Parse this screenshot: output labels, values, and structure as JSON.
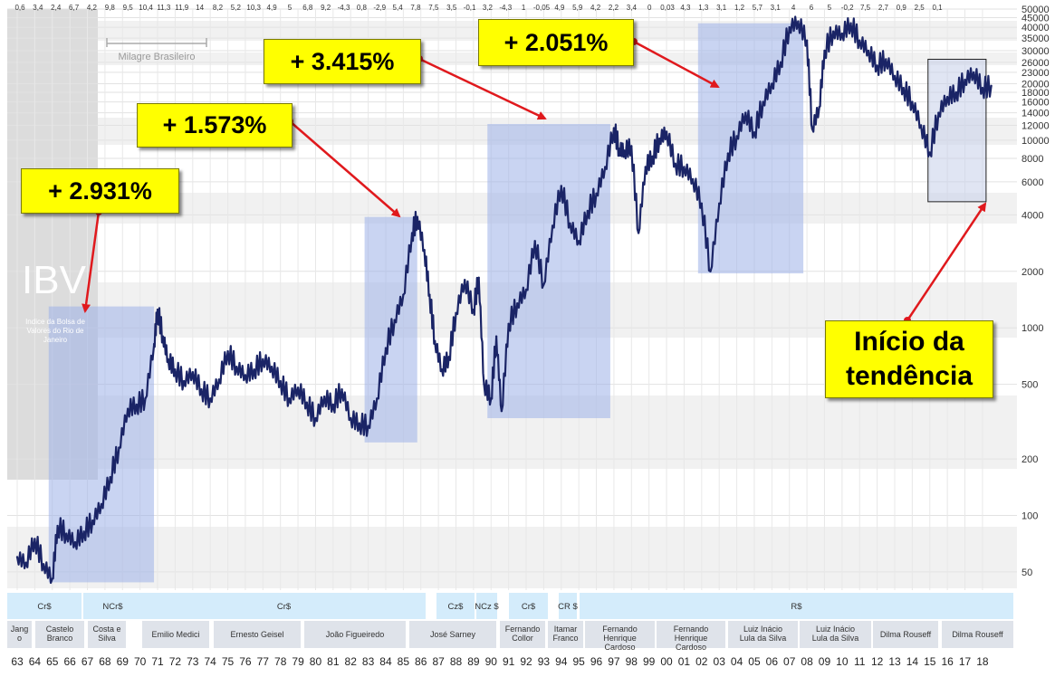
{
  "chart_data": {
    "type": "line",
    "title": "",
    "watermark": {
      "code": "IBV",
      "name": "Indice da Bolsa de Valores do Rio de Janeiro"
    },
    "xlabel": "",
    "ylabel": "",
    "y_scale": "log",
    "ylim": [
      40,
      50000
    ],
    "y_ticks": [
      50,
      100,
      200,
      500,
      1000,
      2000,
      4000,
      6000,
      8000,
      10000,
      12000,
      14000,
      16000,
      18000,
      20000,
      23000,
      26000,
      30000,
      35000,
      40000,
      45000,
      50000
    ],
    "x_ticks": [
      "63",
      "64",
      "65",
      "66",
      "67",
      "68",
      "69",
      "70",
      "71",
      "72",
      "73",
      "74",
      "75",
      "76",
      "77",
      "78",
      "79",
      "80",
      "81",
      "82",
      "83",
      "84",
      "85",
      "86",
      "87",
      "88",
      "89",
      "90",
      "91",
      "92",
      "93",
      "94",
      "95",
      "96",
      "97",
      "98",
      "99",
      "00",
      "01",
      "02",
      "03",
      "04",
      "05",
      "06",
      "07",
      "08",
      "09",
      "10",
      "11",
      "12",
      "13",
      "14",
      "15",
      "16",
      "17",
      "18"
    ],
    "top_values": [
      "0,6",
      "3,4",
      "2,4",
      "6,7",
      "4,2",
      "9,8",
      "9,5",
      "10,4",
      "11,3",
      "11,9",
      "14",
      "8,2",
      "5,2",
      "10,3",
      "4,9",
      "5",
      "6,8",
      "9,2",
      "-4,3",
      "0,8",
      "-2,9",
      "5,4",
      "7,8",
      "7,5",
      "3,5",
      "-0,1",
      "3,2",
      "-4,3",
      "1",
      "-0,05",
      "4,9",
      "5,9",
      "4,2",
      "2,2",
      "3,4",
      "0",
      "0,03",
      "4,3",
      "1,3",
      "3,1",
      "1,2",
      "5,7",
      "3,1",
      "4",
      "6",
      "5",
      "-0,2",
      "7,5",
      "2,7",
      "0,9",
      "2,5",
      "0,1"
    ],
    "series": [
      {
        "values": [
          [
            63.0,
            60
          ],
          [
            63.5,
            56
          ],
          [
            64.0,
            75
          ],
          [
            64.5,
            55
          ],
          [
            65.0,
            46
          ],
          [
            65.3,
            88
          ],
          [
            65.8,
            80
          ],
          [
            66.3,
            72
          ],
          [
            66.8,
            82
          ],
          [
            67.3,
            94
          ],
          [
            67.8,
            115
          ],
          [
            68.3,
            160
          ],
          [
            68.8,
            230
          ],
          [
            69.3,
            370
          ],
          [
            69.8,
            390
          ],
          [
            70.3,
            420
          ],
          [
            70.8,
            820
          ],
          [
            71.0,
            1250
          ],
          [
            71.3,
            900
          ],
          [
            71.6,
            680
          ],
          [
            72.0,
            600
          ],
          [
            72.5,
            520
          ],
          [
            73.0,
            580
          ],
          [
            73.5,
            470
          ],
          [
            74.0,
            420
          ],
          [
            74.5,
            530
          ],
          [
            75.0,
            750
          ],
          [
            75.5,
            620
          ],
          [
            76.0,
            560
          ],
          [
            76.5,
            600
          ],
          [
            77.0,
            680
          ],
          [
            77.5,
            620
          ],
          [
            78.0,
            520
          ],
          [
            78.5,
            420
          ],
          [
            79.0,
            480
          ],
          [
            79.5,
            400
          ],
          [
            80.0,
            330
          ],
          [
            80.5,
            430
          ],
          [
            81.0,
            390
          ],
          [
            81.5,
            470
          ],
          [
            82.0,
            330
          ],
          [
            82.5,
            310
          ],
          [
            83.0,
            300
          ],
          [
            83.5,
            420
          ],
          [
            84.0,
            780
          ],
          [
            84.5,
            1100
          ],
          [
            85.0,
            1500
          ],
          [
            85.5,
            3200
          ],
          [
            85.8,
            3900
          ],
          [
            86.2,
            2600
          ],
          [
            86.5,
            1500
          ],
          [
            86.8,
            850
          ],
          [
            87.2,
            600
          ],
          [
            87.6,
            700
          ],
          [
            88.0,
            1200
          ],
          [
            88.5,
            1800
          ],
          [
            89.0,
            1250
          ],
          [
            89.3,
            1850
          ],
          [
            89.6,
            500
          ],
          [
            90.0,
            420
          ],
          [
            90.3,
            900
          ],
          [
            90.6,
            360
          ],
          [
            91.0,
            1050
          ],
          [
            91.5,
            1350
          ],
          [
            92.0,
            1600
          ],
          [
            92.5,
            2900
          ],
          [
            93.0,
            1700
          ],
          [
            93.5,
            3500
          ],
          [
            94.0,
            5700
          ],
          [
            94.5,
            3600
          ],
          [
            95.0,
            2900
          ],
          [
            95.5,
            4200
          ],
          [
            96.0,
            5200
          ],
          [
            96.5,
            7200
          ],
          [
            97.0,
            11600
          ],
          [
            97.3,
            9000
          ],
          [
            97.6,
            8800
          ],
          [
            98.0,
            9300
          ],
          [
            98.4,
            3200
          ],
          [
            98.8,
            7200
          ],
          [
            99.2,
            8200
          ],
          [
            99.6,
            10200
          ],
          [
            100.0,
            11100
          ],
          [
            100.5,
            7500
          ],
          [
            101.0,
            7200
          ],
          [
            101.5,
            6200
          ],
          [
            102.0,
            4600
          ],
          [
            102.5,
            2000
          ],
          [
            103.0,
            4600
          ],
          [
            103.5,
            8500
          ],
          [
            104.0,
            10500
          ],
          [
            104.5,
            14000
          ],
          [
            105.0,
            11000
          ],
          [
            105.5,
            16000
          ],
          [
            106.0,
            20000
          ],
          [
            106.5,
            26000
          ],
          [
            107.0,
            40000
          ],
          [
            107.5,
            43000
          ],
          [
            108.0,
            34000
          ],
          [
            108.3,
            11500
          ],
          [
            108.7,
            15000
          ],
          [
            109.0,
            30000
          ],
          [
            109.5,
            38000
          ],
          [
            110.0,
            37000
          ],
          [
            110.5,
            42000
          ],
          [
            111.0,
            34000
          ],
          [
            111.5,
            30000
          ],
          [
            112.0,
            25000
          ],
          [
            112.5,
            27000
          ],
          [
            113.0,
            22000
          ],
          [
            113.5,
            19000
          ],
          [
            114.0,
            16000
          ],
          [
            114.5,
            12000
          ],
          [
            115.0,
            8600
          ],
          [
            115.5,
            14000
          ],
          [
            116.0,
            17000
          ],
          [
            116.5,
            18000
          ],
          [
            117.0,
            21000
          ],
          [
            117.5,
            23000
          ],
          [
            118.0,
            19000
          ],
          [
            118.5,
            19500
          ]
        ]
      }
    ],
    "annotations": [
      {
        "text": "Milagre Brasileiro"
      },
      {
        "text": "+ 2.931%",
        "range": [
          "65",
          "71"
        ]
      },
      {
        "text": "+ 1.573%",
        "range": [
          "83",
          "86"
        ]
      },
      {
        "text": "+ 3.415%",
        "range": [
          "90",
          "97"
        ]
      },
      {
        "text": "+ 2.051%",
        "range": [
          "02",
          "08"
        ]
      },
      {
        "text": "Início da tendência",
        "range": [
          "15",
          "18"
        ]
      }
    ],
    "currency_row": [
      "Cr$",
      "NCr$",
      "Cr$",
      "Cz$",
      "NCz $",
      "Cr$",
      "CR $",
      "R$"
    ],
    "president_row": [
      "Jang o",
      "Castelo Branco",
      "Costa e Silva",
      "Emilio Medici",
      "Ernesto Geisel",
      "João Figueiredo",
      "José Sarney",
      "Fernando Collor",
      "Itamar Franco",
      "Fernando Henrique Cardoso",
      "Fernando Henrique Cardoso",
      "Luiz Inácio Lula da Silva",
      "Luiz Inácio Lula da Silva",
      "Dilma Rouseff",
      "Dilma Rouseff"
    ],
    "colors": {
      "price": "#1a2466",
      "highlight": "#9db0e8",
      "callout": "#ffff00",
      "arrow": "#e0191d"
    },
    "grid": true,
    "legend": "none"
  }
}
